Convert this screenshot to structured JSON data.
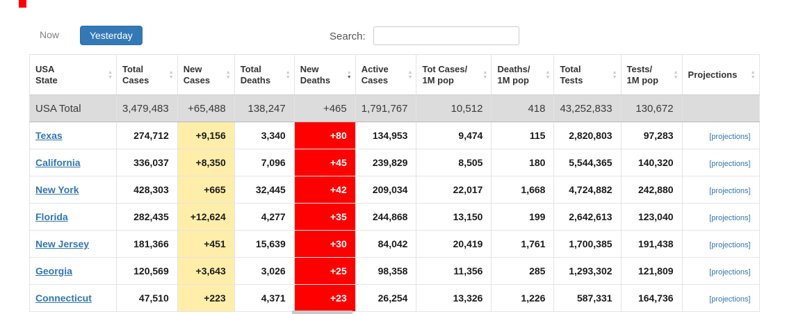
{
  "toolbar": {
    "now_label": "Now",
    "yesterday_label": "Yesterday",
    "search_label": "Search:",
    "search_value": ""
  },
  "colors": {
    "accent_blue": "#3379b7",
    "link_blue": "#3276b1",
    "new_cases_bg": "#ffeeaa",
    "new_deaths_bg": "#ff0000",
    "new_deaths_text": "#ffffff",
    "total_row_bg": "#dcdcdc",
    "marker_red": "#ff0000"
  },
  "table": {
    "projections_label": "[projections]",
    "headers": [
      {
        "line1": "USA",
        "line2": "State",
        "sorted": false
      },
      {
        "line1": "Total",
        "line2": "Cases",
        "sorted": false
      },
      {
        "line1": "New",
        "line2": "Cases",
        "sorted": false
      },
      {
        "line1": "Total",
        "line2": "Deaths",
        "sorted": false
      },
      {
        "line1": "New",
        "line2": "Deaths",
        "sorted": true
      },
      {
        "line1": "Active",
        "line2": "Cases",
        "sorted": false
      },
      {
        "line1": "Tot Cases/",
        "line2": "1M pop",
        "sorted": false
      },
      {
        "line1": "Deaths/",
        "line2": "1M pop",
        "sorted": false
      },
      {
        "line1": "Total",
        "line2": "Tests",
        "sorted": false
      },
      {
        "line1": "Tests/",
        "line2": "1M pop",
        "sorted": false
      },
      {
        "line1": "Projections",
        "line2": "",
        "sorted": false
      }
    ],
    "total_row": {
      "state": "USA Total",
      "total_cases": "3,479,483",
      "new_cases": "+65,488",
      "total_deaths": "138,247",
      "new_deaths": "+465",
      "active_cases": "1,791,767",
      "cases_1m": "10,512",
      "deaths_1m": "418",
      "total_tests": "43,252,833",
      "tests_1m": "130,672",
      "projections": ""
    },
    "rows": [
      {
        "state": "Texas",
        "total_cases": "274,712",
        "new_cases": "+9,156",
        "total_deaths": "3,340",
        "new_deaths": "+80",
        "active_cases": "134,953",
        "cases_1m": "9,474",
        "deaths_1m": "115",
        "total_tests": "2,820,803",
        "tests_1m": "97,283"
      },
      {
        "state": "California",
        "total_cases": "336,037",
        "new_cases": "+8,350",
        "total_deaths": "7,096",
        "new_deaths": "+45",
        "active_cases": "239,829",
        "cases_1m": "8,505",
        "deaths_1m": "180",
        "total_tests": "5,544,365",
        "tests_1m": "140,320"
      },
      {
        "state": "New York",
        "total_cases": "428,303",
        "new_cases": "+665",
        "total_deaths": "32,445",
        "new_deaths": "+42",
        "active_cases": "209,034",
        "cases_1m": "22,017",
        "deaths_1m": "1,668",
        "total_tests": "4,724,882",
        "tests_1m": "242,880"
      },
      {
        "state": "Florida",
        "total_cases": "282,435",
        "new_cases": "+12,624",
        "total_deaths": "4,277",
        "new_deaths": "+35",
        "active_cases": "244,868",
        "cases_1m": "13,150",
        "deaths_1m": "199",
        "total_tests": "2,642,613",
        "tests_1m": "123,040"
      },
      {
        "state": "New Jersey",
        "total_cases": "181,366",
        "new_cases": "+451",
        "total_deaths": "15,639",
        "new_deaths": "+30",
        "active_cases": "84,042",
        "cases_1m": "20,419",
        "deaths_1m": "1,761",
        "total_tests": "1,700,385",
        "tests_1m": "191,438"
      },
      {
        "state": "Georgia",
        "total_cases": "120,569",
        "new_cases": "+3,643",
        "total_deaths": "3,026",
        "new_deaths": "+25",
        "active_cases": "98,358",
        "cases_1m": "11,356",
        "deaths_1m": "285",
        "total_tests": "1,293,302",
        "tests_1m": "121,809"
      },
      {
        "state": "Connecticut",
        "total_cases": "47,510",
        "new_cases": "+223",
        "total_deaths": "4,371",
        "new_deaths": "+23",
        "active_cases": "26,254",
        "cases_1m": "13,326",
        "deaths_1m": "1,226",
        "total_tests": "587,331",
        "tests_1m": "164,736"
      }
    ]
  }
}
